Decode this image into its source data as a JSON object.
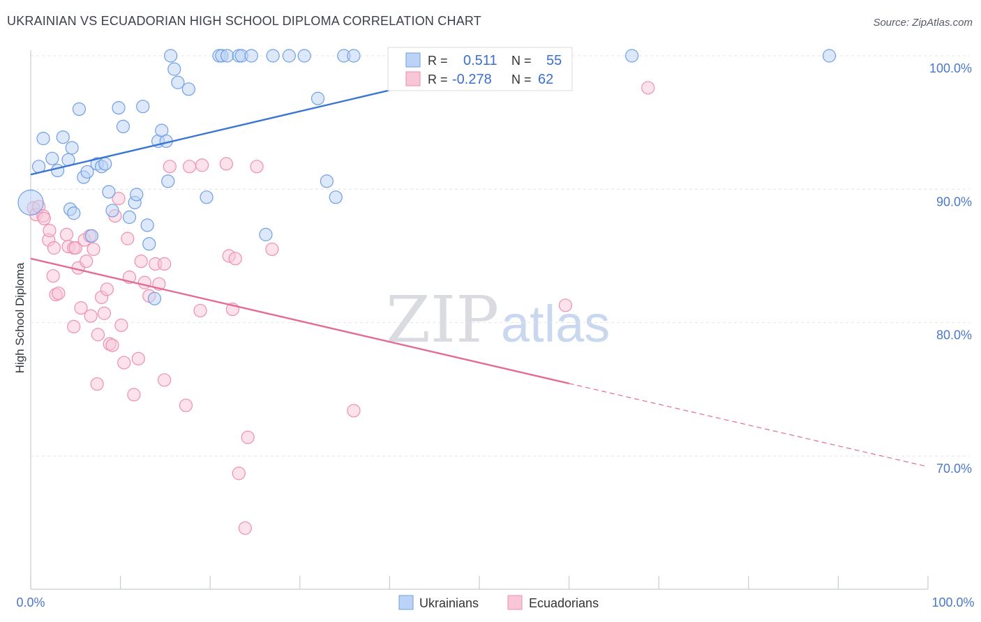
{
  "title": "UKRAINIAN VS ECUADORIAN HIGH SCHOOL DIPLOMA CORRELATION CHART",
  "source": "Source: ZipAtlas.com",
  "watermark": {
    "zip": "ZIP",
    "atlas": "atlas"
  },
  "legend": {
    "r_label": "R =",
    "n_label": "N =",
    "rows": [
      {
        "r": "0.511",
        "n": "55"
      },
      {
        "r": "-0.278",
        "n": "62"
      }
    ]
  },
  "bottom_legend": [
    "Ukrainians",
    "Ecuadorians"
  ],
  "chart_data": {
    "type": "scatter",
    "title": "UKRAINIAN VS ECUADORIAN HIGH SCHOOL DIPLOMA CORRELATION CHART",
    "xlabel": "",
    "ylabel": "High School Diploma",
    "xlim": [
      0,
      100
    ],
    "ylim": [
      60.5,
      101.5
    ],
    "x_tick_labels": [
      "0.0%",
      "100.0%"
    ],
    "y_ticks": [
      70,
      80,
      90,
      100
    ],
    "y_tick_labels": [
      "70.0%",
      "80.0%",
      "90.0%",
      "100.0%"
    ],
    "grid": "horizontal dashed",
    "legend_position": "top-center",
    "colors": {
      "ukrainians": "#6f9ee6",
      "ecuadorians": "#ee8fb0",
      "blue_line": "#3a75d0",
      "pink_line": "#e26c97"
    },
    "series": [
      {
        "name": "Ukrainians",
        "r": 0.511,
        "n": 55,
        "trend": {
          "x0": 0,
          "y0": 91.1,
          "x1": 57,
          "y1": 100.1,
          "solid_to": 57
        },
        "points": [
          [
            0,
            89.0
          ],
          [
            0.9,
            91.7
          ],
          [
            1.4,
            93.8
          ],
          [
            2.4,
            92.3
          ],
          [
            3.0,
            91.4
          ],
          [
            3.6,
            93.9
          ],
          [
            4.2,
            92.2
          ],
          [
            4.4,
            88.5
          ],
          [
            4.6,
            93.1
          ],
          [
            4.8,
            88.2
          ],
          [
            5.4,
            96.0
          ],
          [
            5.9,
            90.9
          ],
          [
            6.3,
            91.3
          ],
          [
            6.8,
            86.5
          ],
          [
            7.4,
            91.9
          ],
          [
            7.9,
            91.7
          ],
          [
            8.3,
            91.9
          ],
          [
            8.7,
            89.8
          ],
          [
            9.1,
            88.4
          ],
          [
            9.8,
            96.1
          ],
          [
            10.3,
            94.7
          ],
          [
            11.0,
            87.9
          ],
          [
            11.6,
            89.0
          ],
          [
            11.8,
            89.6
          ],
          [
            12.5,
            96.2
          ],
          [
            13.0,
            87.3
          ],
          [
            13.2,
            85.9
          ],
          [
            13.8,
            81.8
          ],
          [
            14.2,
            93.6
          ],
          [
            14.6,
            94.4
          ],
          [
            15.1,
            93.6
          ],
          [
            15.3,
            90.6
          ],
          [
            15.6,
            100.0
          ],
          [
            16.0,
            99.0
          ],
          [
            16.4,
            98.0
          ],
          [
            17.6,
            97.5
          ],
          [
            19.6,
            89.4
          ],
          [
            21.0,
            100.0
          ],
          [
            21.3,
            100.0
          ],
          [
            21.9,
            100.0
          ],
          [
            23.2,
            100.0
          ],
          [
            23.5,
            100.0
          ],
          [
            24.6,
            100.0
          ],
          [
            26.2,
            86.6
          ],
          [
            27.0,
            100.0
          ],
          [
            28.8,
            100.0
          ],
          [
            30.5,
            100.0
          ],
          [
            32.0,
            96.8
          ],
          [
            33.0,
            90.6
          ],
          [
            34.0,
            89.4
          ],
          [
            34.9,
            100.0
          ],
          [
            36.0,
            100.0
          ],
          [
            47.0,
            100.0
          ],
          [
            67.0,
            100.0
          ],
          [
            89.0,
            100.0
          ]
        ]
      },
      {
        "name": "Ecuadorians",
        "r": -0.278,
        "n": 62,
        "trend": {
          "x0": 0,
          "y0": 84.8,
          "x1": 100,
          "y1": 69.2,
          "solid_to": 60
        },
        "points": [
          [
            0.3,
            88.6
          ],
          [
            0.6,
            88.1
          ],
          [
            0.9,
            88.7
          ],
          [
            1.4,
            88.0
          ],
          [
            1.5,
            87.8
          ],
          [
            2.0,
            86.2
          ],
          [
            2.1,
            86.9
          ],
          [
            2.5,
            83.5
          ],
          [
            2.6,
            85.6
          ],
          [
            2.8,
            82.1
          ],
          [
            3.1,
            82.2
          ],
          [
            4.0,
            86.6
          ],
          [
            4.2,
            85.7
          ],
          [
            4.8,
            85.6
          ],
          [
            5.0,
            85.6
          ],
          [
            4.8,
            79.7
          ],
          [
            5.3,
            84.1
          ],
          [
            5.6,
            81.1
          ],
          [
            6.0,
            86.2
          ],
          [
            6.2,
            84.6
          ],
          [
            6.6,
            86.5
          ],
          [
            6.7,
            80.5
          ],
          [
            7.0,
            85.5
          ],
          [
            7.4,
            75.4
          ],
          [
            7.5,
            79.1
          ],
          [
            7.9,
            81.9
          ],
          [
            8.2,
            80.7
          ],
          [
            8.5,
            82.5
          ],
          [
            8.8,
            78.4
          ],
          [
            9.1,
            78.3
          ],
          [
            9.4,
            88.0
          ],
          [
            9.8,
            89.3
          ],
          [
            10.1,
            79.8
          ],
          [
            10.4,
            77.0
          ],
          [
            10.8,
            86.3
          ],
          [
            11.0,
            83.4
          ],
          [
            11.5,
            74.6
          ],
          [
            12.0,
            77.3
          ],
          [
            12.3,
            84.6
          ],
          [
            12.7,
            83.0
          ],
          [
            13.2,
            82.0
          ],
          [
            13.9,
            84.4
          ],
          [
            14.3,
            82.9
          ],
          [
            14.9,
            75.7
          ],
          [
            14.9,
            84.4
          ],
          [
            15.5,
            91.7
          ],
          [
            17.3,
            73.8
          ],
          [
            17.7,
            91.7
          ],
          [
            18.9,
            80.9
          ],
          [
            19.1,
            91.8
          ],
          [
            21.8,
            91.9
          ],
          [
            22.1,
            85.0
          ],
          [
            22.5,
            81.0
          ],
          [
            22.8,
            84.8
          ],
          [
            23.2,
            68.7
          ],
          [
            23.9,
            64.6
          ],
          [
            24.2,
            71.4
          ],
          [
            25.2,
            91.7
          ],
          [
            26.9,
            85.5
          ],
          [
            36.0,
            73.4
          ],
          [
            59.6,
            81.3
          ],
          [
            68.8,
            97.6
          ]
        ]
      }
    ]
  }
}
